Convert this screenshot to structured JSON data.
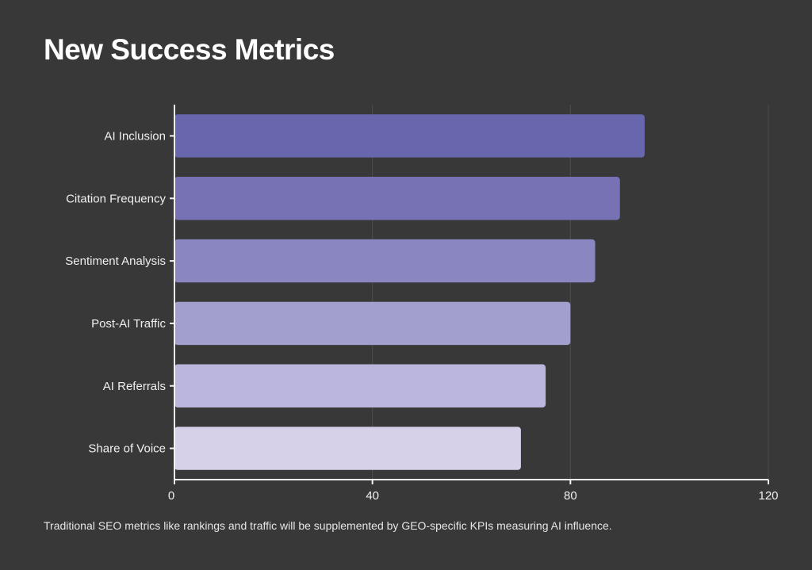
{
  "title": "New Success Metrics",
  "caption": "Traditional SEO metrics like rankings and traffic will be supplemented by GEO-specific KPIs measuring AI influence.",
  "chart_data": {
    "type": "bar",
    "orientation": "horizontal",
    "categories": [
      "AI Inclusion",
      "Citation Frequency",
      "Sentiment Analysis",
      "Post-AI Traffic",
      "AI Referrals",
      "Share of Voice"
    ],
    "values": [
      95,
      90,
      85,
      80,
      75,
      70
    ],
    "colors": [
      "#6866ad",
      "#7672b4",
      "#8a86c1",
      "#a29fcf",
      "#bab6dd",
      "#d6d0e9"
    ],
    "xlim": [
      0,
      120
    ],
    "xticks": [
      0,
      40,
      80,
      120
    ],
    "xtick_labels": [
      "0",
      "40",
      "80",
      "120"
    ],
    "grid": true
  }
}
